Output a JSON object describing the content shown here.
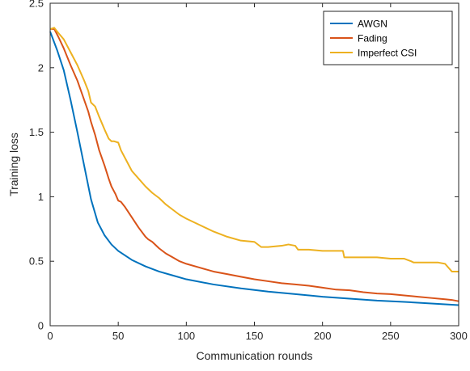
{
  "chart_data": {
    "type": "line",
    "title": "",
    "xlabel": "Communication rounds",
    "ylabel": "Training loss",
    "xlim": [
      0,
      300
    ],
    "ylim": [
      0,
      2.5
    ],
    "xticks": [
      0,
      50,
      100,
      150,
      200,
      250,
      300
    ],
    "yticks": [
      0,
      0.5,
      1,
      1.5,
      2,
      2.5
    ],
    "xtick_labels": [
      "0",
      "50",
      "100",
      "150",
      "200",
      "250",
      "300"
    ],
    "ytick_labels": [
      "0",
      "0.5",
      "1",
      "1.5",
      "2",
      "2.5"
    ],
    "grid": false,
    "legend_position": "top-right",
    "series": [
      {
        "name": "AWGN",
        "color": "#0072BD",
        "x": [
          0,
          5,
          10,
          15,
          20,
          25,
          30,
          35,
          38,
          40,
          45,
          50,
          60,
          70,
          80,
          90,
          100,
          120,
          140,
          160,
          180,
          200,
          220,
          240,
          260,
          280,
          300
        ],
        "y": [
          2.28,
          2.14,
          1.98,
          1.75,
          1.5,
          1.24,
          0.98,
          0.8,
          0.74,
          0.7,
          0.63,
          0.58,
          0.51,
          0.46,
          0.42,
          0.39,
          0.36,
          0.32,
          0.29,
          0.265,
          0.245,
          0.225,
          0.21,
          0.195,
          0.185,
          0.172,
          0.16
        ]
      },
      {
        "name": "Fading",
        "color": "#D95319",
        "x": [
          0,
          3,
          6,
          10,
          15,
          20,
          22,
          25,
          28,
          30,
          33,
          36,
          40,
          43,
          45,
          48,
          50,
          52,
          55,
          60,
          65,
          70,
          72,
          75,
          80,
          85,
          90,
          95,
          100,
          110,
          120,
          130,
          140,
          150,
          160,
          170,
          180,
          190,
          200,
          210,
          220,
          230,
          240,
          250,
          260,
          270,
          280,
          290,
          295,
          300
        ],
        "y": [
          2.3,
          2.3,
          2.24,
          2.15,
          2.02,
          1.9,
          1.84,
          1.75,
          1.66,
          1.58,
          1.48,
          1.36,
          1.24,
          1.14,
          1.08,
          1.02,
          0.97,
          0.96,
          0.92,
          0.84,
          0.76,
          0.69,
          0.67,
          0.65,
          0.6,
          0.56,
          0.53,
          0.5,
          0.48,
          0.45,
          0.42,
          0.4,
          0.38,
          0.36,
          0.345,
          0.33,
          0.32,
          0.31,
          0.295,
          0.28,
          0.275,
          0.26,
          0.25,
          0.245,
          0.235,
          0.225,
          0.215,
          0.205,
          0.2,
          0.19
        ]
      },
      {
        "name": "Imperfect CSI",
        "color": "#EDB120",
        "x": [
          0,
          3,
          6,
          10,
          15,
          20,
          25,
          28,
          30,
          33,
          36,
          40,
          43,
          45,
          47,
          50,
          52,
          55,
          60,
          65,
          70,
          75,
          80,
          85,
          90,
          95,
          100,
          110,
          120,
          130,
          140,
          150,
          155,
          160,
          170,
          175,
          180,
          182,
          190,
          200,
          210,
          215,
          216,
          225,
          235,
          240,
          236,
          240,
          250,
          260,
          265,
          267,
          275,
          285,
          290,
          295,
          300
        ],
        "y": [
          2.3,
          2.31,
          2.27,
          2.22,
          2.12,
          2.02,
          1.9,
          1.82,
          1.73,
          1.7,
          1.62,
          1.52,
          1.45,
          1.43,
          1.43,
          1.42,
          1.36,
          1.3,
          1.2,
          1.14,
          1.08,
          1.03,
          0.99,
          0.94,
          0.9,
          0.86,
          0.83,
          0.78,
          0.73,
          0.69,
          0.66,
          0.65,
          0.61,
          0.61,
          0.62,
          0.63,
          0.62,
          0.59,
          0.59,
          0.58,
          0.58,
          0.58,
          0.53,
          0.53,
          0.53,
          0.53,
          0.53,
          0.53,
          0.52,
          0.52,
          0.5,
          0.49,
          0.49,
          0.49,
          0.48,
          0.42,
          0.42
        ]
      }
    ]
  }
}
